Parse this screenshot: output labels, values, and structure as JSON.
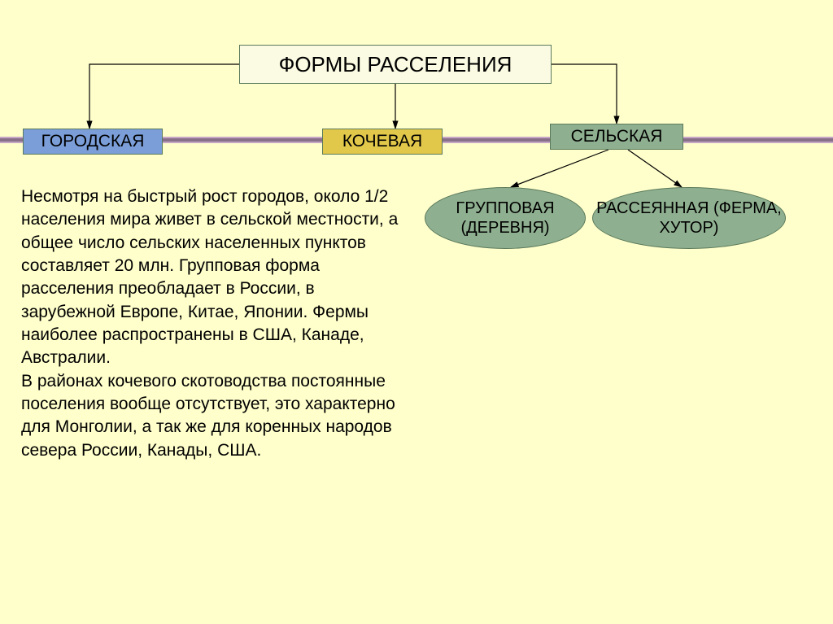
{
  "diagram": {
    "title": "ФОРМЫ РАССЕЛЕНИЯ",
    "categories": {
      "urban": "ГОРОДСКАЯ",
      "nomadic": "КОЧЕВАЯ",
      "rural": "СЕЛЬСКАЯ"
    },
    "rural_sub": {
      "group": "ГРУППОВАЯ (ДЕРЕВНЯ)",
      "scattered": "РАССЕЯННАЯ (ФЕРМА, ХУТОР)"
    },
    "paragraph": "Несмотря на быстрый рост городов, около 1/2 населения мира живет в сельской местности, а общее число сельских населенных пунктов составляет 20 млн. Групповая форма расселения преобладает в России, в зарубежной Европе, Китае, Японии. Фермы наиболее распространены в США, Канаде, Австралии.\nВ районах кочевого скотоводства постоянные поселения вообще отсутствует, это характерно для Монголии, а так же для коренных народов севера России, Канады, США."
  },
  "style": {
    "background": "#ffffcc",
    "title_bg": "#fbfae2",
    "urban_bg": "#7b9ed8",
    "nomadic_bg": "#e2c84a",
    "rural_bg": "#8fb090",
    "ellipse_bg": "#8fb090",
    "border_color": "#5b7a5b",
    "bar_dark": "#887088",
    "bar_light": "#c6a6c6",
    "title_fontsize": 26,
    "box_fontsize": 21,
    "ellipse_fontsize": 20,
    "body_fontsize": 21
  }
}
